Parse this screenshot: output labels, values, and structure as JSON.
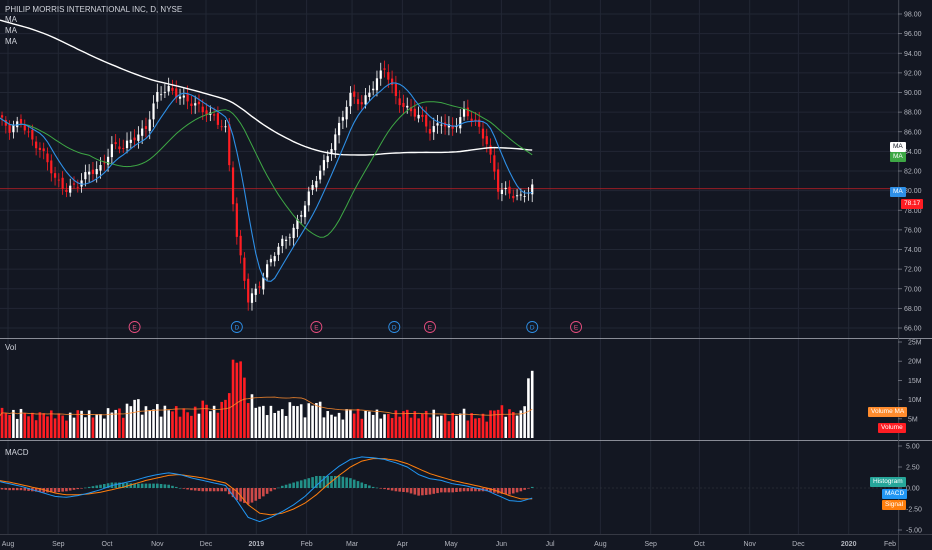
{
  "header": {
    "symbol_title": "PHILIP MORRIS INTERNATIONAL INC, D, NYSE",
    "legend": [
      "MA",
      "MA",
      "MA"
    ]
  },
  "panes": {
    "volume_label": "Vol",
    "macd_label": "MACD"
  },
  "colors": {
    "background": "#131722",
    "grid": "#222734",
    "up": "#ffffff",
    "down": "#ff1d23",
    "ma_fast": "#2e8fe6",
    "ma_mid": "#3ea845",
    "ma_slow": "#ffffff",
    "volume_ma": "#ff8c2e",
    "macd_line": "#2196f3",
    "signal_line": "#ff7f0e",
    "hist_pos": "#26a69a",
    "hist_neg": "#ef5350",
    "price_line": "#b01e24"
  },
  "price_axis": {
    "ticks": [
      "98.00",
      "96.00",
      "94.00",
      "92.00",
      "90.00",
      "88.00",
      "86.00",
      "84.00",
      "82.00",
      "80.00",
      "78.00",
      "76.00",
      "74.00",
      "72.00",
      "70.00",
      "68.00",
      "66.00"
    ]
  },
  "volume_axis": {
    "ticks": [
      "25M",
      "20M",
      "15M",
      "10M",
      "5M"
    ]
  },
  "macd_axis": {
    "ticks": [
      "5.00",
      "2.50",
      "0.00",
      "-2.50",
      "-5.00"
    ]
  },
  "x_axis": {
    "labels": [
      "Aug",
      "Sep",
      "Oct",
      "Nov",
      "Dec",
      "2019",
      "Feb",
      "Mar",
      "Apr",
      "May",
      "Jun",
      "Jul",
      "Aug",
      "Sep",
      "Oct",
      "Nov",
      "Dec",
      "2020",
      "Feb"
    ]
  },
  "price_tags": {
    "ma_slow": "MA",
    "ma_mid": "MA",
    "ma_fast": "MA",
    "last_price": "78.17"
  },
  "volume_tags": {
    "volume_ma": "Volume MA",
    "volume": "Volume"
  },
  "macd_tags": {
    "histogram": "Histogram",
    "macd": "MACD",
    "signal": "Signal"
  },
  "event_markers": [
    {
      "letter": "E",
      "kind": "earnings",
      "date": "2018-10-18"
    },
    {
      "letter": "D",
      "kind": "dividend",
      "date": "2018-12-20"
    },
    {
      "letter": "E",
      "kind": "earnings",
      "date": "2019-02-07"
    },
    {
      "letter": "D",
      "kind": "dividend",
      "date": "2019-03-27"
    },
    {
      "letter": "E",
      "kind": "earnings",
      "date": "2019-04-18"
    },
    {
      "letter": "D",
      "kind": "dividend",
      "date": "2019-06-20"
    },
    {
      "letter": "E",
      "kind": "earnings",
      "date": "2019-07-17"
    }
  ],
  "chart_data": {
    "type": "line",
    "title": "PHILIP MORRIS INTERNATIONAL INC, D, NYSE",
    "x": [
      "2018-07-26",
      "2018-08-02",
      "2018-08-09",
      "2018-08-16",
      "2018-08-23",
      "2018-08-30",
      "2018-09-06",
      "2018-09-13",
      "2018-09-20",
      "2018-09-27",
      "2018-10-04",
      "2018-10-11",
      "2018-10-18",
      "2018-10-25",
      "2018-11-01",
      "2018-11-08",
      "2018-11-15",
      "2018-11-22",
      "2018-11-29",
      "2018-12-06",
      "2018-12-13",
      "2018-12-20",
      "2018-12-27",
      "2019-01-03",
      "2019-01-10",
      "2019-01-17",
      "2019-01-24",
      "2019-01-31",
      "2019-02-07",
      "2019-02-14",
      "2019-02-21",
      "2019-02-28",
      "2019-03-07",
      "2019-03-14",
      "2019-03-21",
      "2019-03-28",
      "2019-04-04",
      "2019-04-11",
      "2019-04-18",
      "2019-04-25",
      "2019-05-02",
      "2019-05-09",
      "2019-05-16",
      "2019-05-23",
      "2019-05-30",
      "2019-06-06",
      "2019-06-13",
      "2019-06-20"
    ],
    "series": [
      {
        "type": "price",
        "values": [
          87.5,
          86.0,
          87.2,
          85.2,
          83.5,
          81.2,
          80.3,
          80.5,
          81.8,
          82.5,
          84.5,
          84.2,
          85.6,
          86.5,
          89.6,
          90.4,
          89.8,
          88.8,
          88.1,
          87.7,
          86.2,
          75.0,
          69.0,
          70.5,
          72.8,
          74.8,
          76.2,
          78.5,
          81.2,
          83.8,
          86.6,
          89.5,
          89.0,
          90.8,
          92.3,
          89.5,
          88.5,
          87.5,
          86.0,
          87.2,
          86.2,
          87.8,
          87.2,
          85.0,
          80.0,
          79.8,
          79.5,
          80.2
        ]
      },
      {
        "type": "volume",
        "values": [
          7.0,
          6.0,
          6.5,
          5.5,
          6.0,
          6.0,
          5.0,
          6.5,
          6.0,
          5.5,
          7.0,
          6.5,
          9.5,
          7.0,
          7.5,
          7.0,
          7.0,
          6.0,
          8.5,
          7.0,
          9.0,
          21.0,
          10.5,
          7.5,
          7.0,
          6.5,
          8.5,
          7.0,
          9.0,
          6.0,
          5.5,
          7.0,
          6.0,
          6.5,
          5.5,
          6.0,
          6.5,
          5.5,
          6.5,
          5.5,
          5.5,
          6.5,
          5.0,
          5.5,
          7.5,
          6.5,
          6.0,
          17.5
        ]
      },
      {
        "type": "macd",
        "values": [
          0.8,
          0.5,
          0.2,
          -0.2,
          -0.6,
          -1.0,
          -1.1,
          -0.9,
          -0.6,
          -0.2,
          0.3,
          0.6,
          0.9,
          1.3,
          1.6,
          1.8,
          1.6,
          1.2,
          0.9,
          0.6,
          0.3,
          -1.5,
          -3.5,
          -4.0,
          -3.5,
          -2.8,
          -2.0,
          -1.0,
          0.3,
          1.5,
          2.6,
          3.4,
          3.7,
          3.6,
          3.4,
          3.0,
          2.5,
          1.6,
          1.1,
          0.9,
          0.5,
          0.3,
          0.0,
          -0.3,
          -0.9,
          -1.5,
          -1.6,
          -1.2
        ]
      },
      {
        "type": "signal",
        "values": [
          0.9,
          0.7,
          0.4,
          0.1,
          -0.2,
          -0.6,
          -0.8,
          -0.8,
          -0.7,
          -0.5,
          -0.2,
          0.1,
          0.5,
          0.9,
          1.2,
          1.5,
          1.6,
          1.4,
          1.2,
          0.9,
          0.6,
          -0.4,
          -2.0,
          -3.0,
          -3.2,
          -3.0,
          -2.5,
          -1.8,
          -0.8,
          0.4,
          1.5,
          2.5,
          3.2,
          3.5,
          3.5,
          3.3,
          2.9,
          2.3,
          1.7,
          1.3,
          0.9,
          0.6,
          0.3,
          0.0,
          -0.4,
          -0.9,
          -1.3,
          -1.3
        ]
      }
    ],
    "ylim": [
      65,
      99
    ]
  }
}
